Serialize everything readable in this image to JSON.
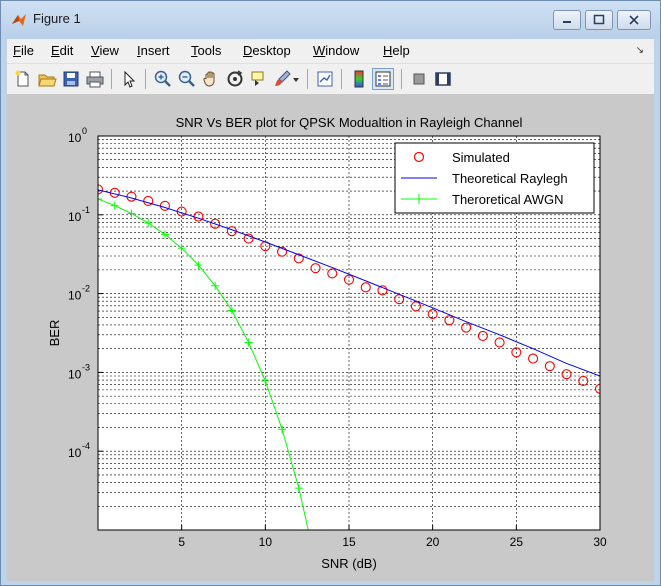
{
  "window": {
    "title": "Figure 1",
    "minimize_label": "minimize",
    "maximize_label": "maximize",
    "close_label": "close"
  },
  "menu": {
    "items": [
      {
        "label": "File",
        "key": "F",
        "rest": "ile"
      },
      {
        "label": "Edit",
        "key": "E",
        "rest": "dit"
      },
      {
        "label": "View",
        "key": "V",
        "rest": "iew"
      },
      {
        "label": "Insert",
        "key": "I",
        "rest": "nsert"
      },
      {
        "label": "Tools",
        "key": "T",
        "rest": "ools"
      },
      {
        "label": "Desktop",
        "key": "D",
        "rest": "esktop"
      },
      {
        "label": "Window",
        "key": "W",
        "rest": "indow"
      },
      {
        "label": "Help",
        "key": "H",
        "rest": "elp"
      }
    ]
  },
  "toolbar": {
    "buttons": [
      "new-figure-icon",
      "open-file-icon",
      "save-icon",
      "print-icon",
      "pointer-icon",
      "zoom-in-icon",
      "zoom-out-icon",
      "pan-hand-icon",
      "rotate-3d-icon",
      "data-cursor-icon",
      "brush-icon",
      "link-plot-icon",
      "colorbar-icon",
      "legend-icon",
      "hide-plot-tools-icon",
      "show-plot-tools-icon"
    ]
  },
  "chart_data": {
    "type": "line",
    "title": "SNR Vs BER plot for QPSK Modualtion in Rayleigh Channel",
    "xlabel": "SNR (dB)",
    "ylabel": "BER",
    "xlim": [
      0,
      30
    ],
    "ylim": [
      1e-05,
      1
    ],
    "yscale": "log",
    "grid": true,
    "legend_position": "top-right",
    "x_ticks": [
      5,
      10,
      15,
      20,
      25,
      30
    ],
    "y_tick_labels": [
      {
        "base": "10",
        "exp": "0",
        "value": 1
      },
      {
        "base": "10",
        "exp": "-1",
        "value": 0.1
      },
      {
        "base": "10",
        "exp": "-2",
        "value": 0.01
      },
      {
        "base": "10",
        "exp": "-3",
        "value": 0.001
      },
      {
        "base": "10",
        "exp": "-4",
        "value": 0.0001
      }
    ],
    "series": [
      {
        "name": "Simulated",
        "style": "markers-circle",
        "color": "#ff0000",
        "x": [
          0,
          1,
          2,
          3,
          4,
          5,
          6,
          7,
          8,
          9,
          10,
          11,
          12,
          13,
          14,
          15,
          16,
          17,
          18,
          19,
          20,
          21,
          22,
          23,
          24,
          25,
          26,
          27,
          28,
          29,
          30
        ],
        "y": [
          0.21,
          0.19,
          0.17,
          0.15,
          0.13,
          0.11,
          0.095,
          0.077,
          0.062,
          0.05,
          0.04,
          0.034,
          0.028,
          0.021,
          0.018,
          0.015,
          0.012,
          0.011,
          0.0085,
          0.0069,
          0.0055,
          0.0046,
          0.0037,
          0.0029,
          0.0024,
          0.0018,
          0.0015,
          0.0012,
          0.00095,
          0.00078,
          0.00062
        ]
      },
      {
        "name": "Theoretical Raylegh",
        "style": "line",
        "color": "#0000ff",
        "x": [
          0,
          2,
          4,
          6,
          8,
          10,
          12,
          14,
          16,
          18,
          20,
          22,
          24,
          26,
          28,
          30
        ],
        "y": [
          0.2071,
          0.1634,
          0.1238,
          0.0906,
          0.0646,
          0.0452,
          0.0311,
          0.0214,
          0.0145,
          0.0098,
          0.0066,
          0.0044,
          0.003,
          0.002,
          0.0013,
          0.0009
        ]
      },
      {
        "name": "Theroretical AWGN",
        "style": "line-plus",
        "color": "#00ff00",
        "x": [
          0,
          1,
          2,
          3,
          4,
          5,
          6,
          7,
          8,
          9,
          10,
          11,
          12,
          13
        ],
        "y": [
          0.1587,
          0.1309,
          0.104,
          0.0789,
          0.0565,
          0.0377,
          0.023,
          0.0126,
          0.0061,
          0.0024,
          0.00078,
          0.00019,
          3.4e-05,
          3.9e-06
        ]
      }
    ]
  }
}
